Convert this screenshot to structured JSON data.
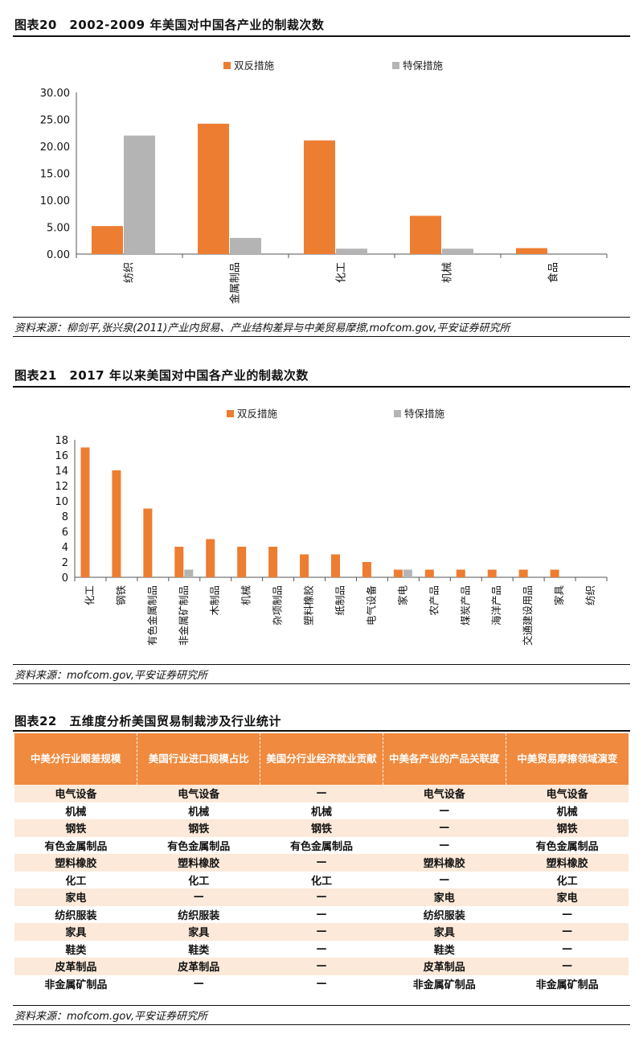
{
  "fig20": {
    "title": "图表20　2002-2009 年美国对中国各产业的制裁次数",
    "source": "资料来源：柳剑平,张兴泉(2011)产业内贸易、产业结构差异与中美贸易摩擦,mofcom.gov,平安证券研究所"
  },
  "fig21": {
    "title": "图表21　2017 年以来美国对中国各产业的制裁次数",
    "source": "资料来源：mofcom.gov,平安证券研究所"
  },
  "fig22": {
    "title": "图表22　五维度分析美国贸易制裁涉及行业统计",
    "source": "资料来源：mofcom.gov,平安证券研究所",
    "headers": [
      "中美分行业顺差规模",
      "美国行业进口规模占比",
      "美国分行业经济就业贡献",
      "中美各产业的产品关联度",
      "中美贸易摩擦领域演变"
    ],
    "rows": [
      [
        "电气设备",
        "电气设备",
        "—",
        "电气设备",
        "电气设备"
      ],
      [
        "机械",
        "机械",
        "机械",
        "—",
        "机械"
      ],
      [
        "钢铁",
        "钢铁",
        "钢铁",
        "—",
        "钢铁"
      ],
      [
        "有色金属制品",
        "有色金属制品",
        "有色金属制品",
        "—",
        "有色金属制品"
      ],
      [
        "塑料橡胶",
        "塑料橡胶",
        "—",
        "塑料橡胶",
        "塑料橡胶"
      ],
      [
        "化工",
        "化工",
        "化工",
        "—",
        "化工"
      ],
      [
        "家电",
        "—",
        "—",
        "家电",
        "家电"
      ],
      [
        "纺织服装",
        "纺织服装",
        "—",
        "纺织服装",
        "—"
      ],
      [
        "家具",
        "家具",
        "—",
        "家具",
        "—"
      ],
      [
        "鞋类",
        "鞋类",
        "—",
        "鞋类",
        "—"
      ],
      [
        "皮革制品",
        "皮革制品",
        "—",
        "皮革制品",
        "—"
      ],
      [
        "非金属矿制品",
        "—",
        "—",
        "非金属矿制品",
        "非金属矿制品"
      ]
    ]
  },
  "colors": {
    "orange": "#ed7d31",
    "gray": "#b4b4b4",
    "header_orange": "#f08a3e",
    "stripe": "#fde9d9"
  },
  "chart_data": [
    {
      "type": "bar",
      "categories": [
        "纺织",
        "金属制品",
        "化工",
        "机械",
        "食品"
      ],
      "series": [
        {
          "name": "双反措施",
          "values": [
            5.2,
            24.2,
            21.1,
            7.1,
            1.1
          ]
        },
        {
          "name": "特保措施",
          "values": [
            22.0,
            3.0,
            1.0,
            1.0,
            0.0
          ]
        }
      ],
      "yticks": [
        "0.00",
        "5.00",
        "10.00",
        "15.00",
        "20.00",
        "25.00",
        "30.00"
      ],
      "ylim": [
        0,
        30
      ],
      "legend": "top"
    },
    {
      "type": "bar",
      "categories": [
        "化工",
        "钢铁",
        "有色金属制品",
        "非金属矿制品",
        "木制品",
        "机械",
        "杂项制品",
        "塑料橡胶",
        "纸制品",
        "电气设备",
        "家电",
        "农产品",
        "煤炭产品",
        "海洋产品",
        "交通建设用品",
        "家具",
        "纺织"
      ],
      "series": [
        {
          "name": "双反措施",
          "values": [
            17,
            14,
            9,
            4,
            5,
            4,
            4,
            3,
            3,
            2,
            1,
            1,
            1,
            1,
            1,
            1,
            0
          ]
        },
        {
          "name": "特保措施",
          "values": [
            0,
            0,
            0,
            1,
            0,
            0,
            0,
            0,
            0,
            0,
            1,
            0,
            0,
            0,
            0,
            0,
            0
          ]
        }
      ],
      "yticks": [
        "0",
        "2",
        "4",
        "6",
        "8",
        "10",
        "12",
        "14",
        "16",
        "18"
      ],
      "ylim": [
        0,
        18
      ],
      "legend": "top"
    }
  ]
}
